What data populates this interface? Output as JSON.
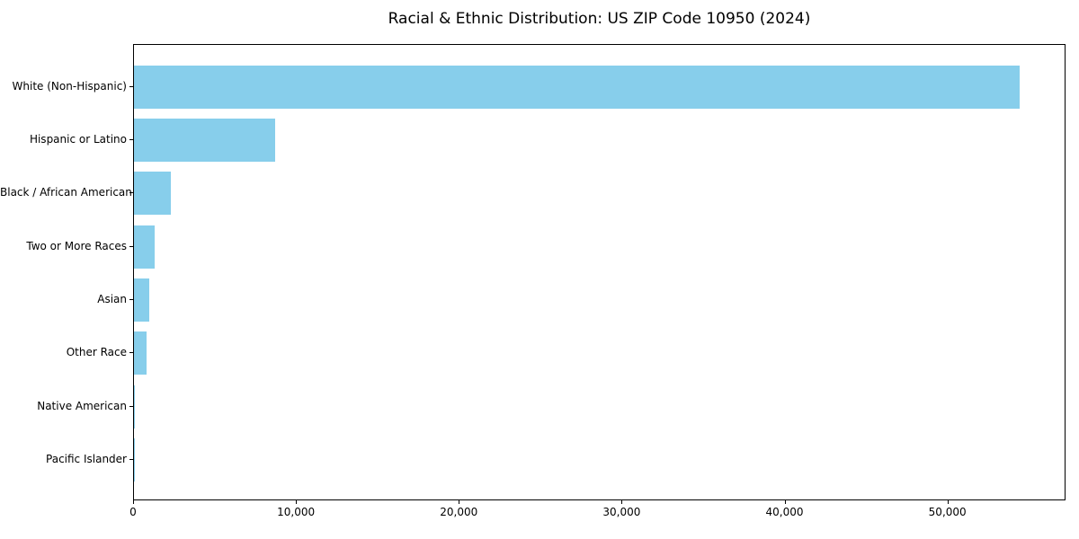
{
  "chart_data": {
    "type": "bar",
    "orientation": "horizontal",
    "title": "Racial & Ethnic Distribution: US ZIP Code 10950 (2024)",
    "categories": [
      "White (Non-Hispanic)",
      "Hispanic or Latino",
      "Black / African American",
      "Two or More Races",
      "Asian",
      "Other Race",
      "Native American",
      "Pacific Islander"
    ],
    "values": [
      54500,
      8700,
      2250,
      1250,
      950,
      800,
      40,
      10
    ],
    "xlabel": "",
    "ylabel": "",
    "xlim": [
      0,
      57250
    ],
    "x_ticks": [
      0,
      10000,
      20000,
      30000,
      40000,
      50000
    ],
    "x_tick_labels": [
      "0",
      "10,000",
      "20,000",
      "30,000",
      "40,000",
      "50,000"
    ],
    "bar_color": "#87CEEB",
    "grid": false,
    "legend": null,
    "category_axis_inverted_note": "largest value at top"
  }
}
